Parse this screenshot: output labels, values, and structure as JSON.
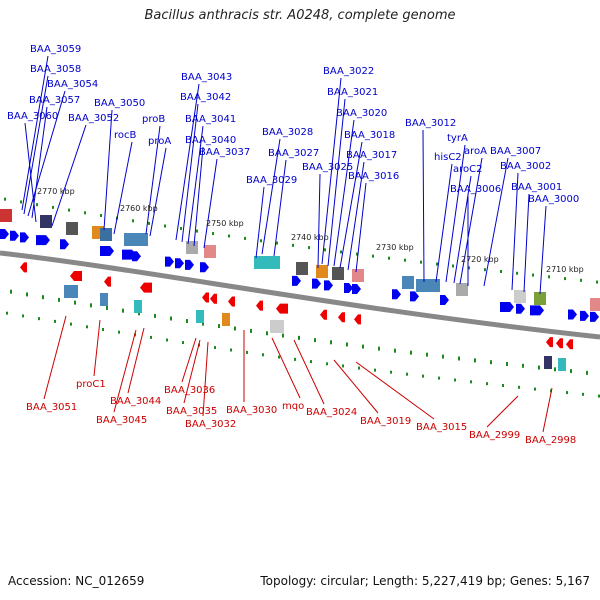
{
  "title": "Bacillus anthracis str. A0248, complete genome",
  "footer": {
    "accession": "Accession: NC_012659",
    "summary": "Topology: circular; Length: 5,227,419 bp; Genes: 5,167"
  },
  "colors": {
    "forward_label": "#0000cc",
    "reverse_label": "#cc0000",
    "forward_arrow": "#0000ee",
    "reverse_arrow": "#ee0000",
    "backbone": "#888888",
    "tick_green": "#1d8a1d"
  },
  "scale": {
    "unit": "kbp",
    "ticks": [
      {
        "label": "2770 kbp"
      },
      {
        "label": "2760 kbp"
      },
      {
        "label": "2750 kbp"
      },
      {
        "label": "2740 kbp"
      },
      {
        "label": "2730 kbp"
      },
      {
        "label": "2720 kbp"
      },
      {
        "label": "2710 kbp"
      }
    ]
  },
  "forward_genes": [
    "BAA_3059",
    "BAA_3058",
    "BAA_3054",
    "BAA_3057",
    "BAA_3060",
    "BAA_3052",
    "BAA_3050",
    "rocB",
    "proB",
    "proA",
    "BAA_3043",
    "BAA_3042",
    "BAA_3041",
    "BAA_3040",
    "BAA_3037",
    "BAA_3028",
    "BAA_3027",
    "BAA_3029",
    "BAA_3022",
    "BAA_3021",
    "BAA_3020",
    "BAA_3025",
    "BAA_3018",
    "BAA_3017",
    "BAA_3016",
    "BAA_3012",
    "tyrA",
    "hisC2",
    "aroC2",
    "aroA",
    "BAA_3006",
    "BAA_3007",
    "BAA_3002",
    "BAA_3001",
    "BAA_3000"
  ],
  "reverse_genes": [
    "BAA_3051",
    "proC1",
    "BAA_3044",
    "BAA_3045",
    "BAA_3036",
    "BAA_3035",
    "BAA_3032",
    "BAA_3030",
    "mqo",
    "BAA_3024",
    "BAA_3019",
    "BAA_3015",
    "BAA_2999",
    "BAA_2998"
  ]
}
